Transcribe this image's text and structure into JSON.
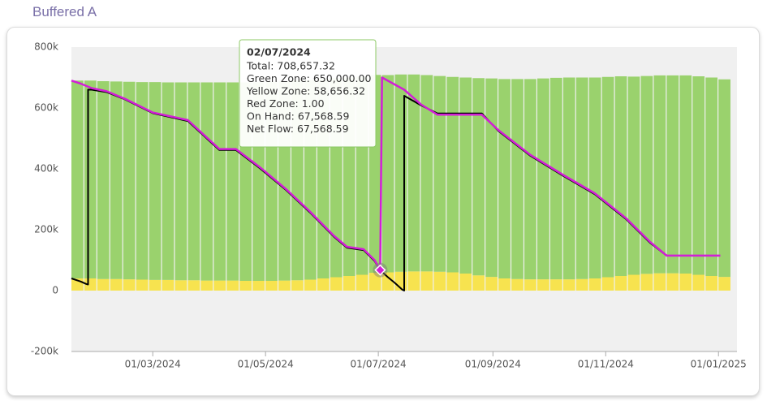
{
  "chart_data": {
    "type": "combo",
    "title": "Buffered A",
    "x": [
      "17/01/2024",
      "24/01/2024",
      "31/01/2024",
      "07/02/2024",
      "14/02/2024",
      "21/02/2024",
      "28/02/2024",
      "06/03/2024",
      "13/03/2024",
      "20/03/2024",
      "27/03/2024",
      "03/04/2024",
      "10/04/2024",
      "17/04/2024",
      "24/04/2024",
      "01/05/2024",
      "08/05/2024",
      "15/05/2024",
      "22/05/2024",
      "29/05/2024",
      "05/06/2024",
      "12/06/2024",
      "19/06/2024",
      "26/06/2024",
      "03/07/2024",
      "10/07/2024",
      "17/07/2024",
      "24/07/2024",
      "31/07/2024",
      "07/08/2024",
      "14/08/2024",
      "21/08/2024",
      "28/08/2024",
      "04/09/2024",
      "11/09/2024",
      "18/09/2024",
      "25/09/2024",
      "02/10/2024",
      "09/10/2024",
      "16/10/2024",
      "23/10/2024",
      "30/10/2024",
      "06/11/2024",
      "13/11/2024",
      "20/11/2024",
      "27/11/2024",
      "04/12/2024",
      "11/12/2024",
      "18/12/2024",
      "25/12/2024",
      "01/01/2025"
    ],
    "xlim": [
      "17/01/2024",
      "11/01/2025"
    ],
    "xticks": [
      "01/03/2024",
      "01/05/2024",
      "01/07/2024",
      "01/09/2024",
      "01/11/2024",
      "01/01/2025"
    ],
    "ylim": [
      -200000,
      800000
    ],
    "yticks": [
      {
        "value": -200000,
        "label": "-200k"
      },
      0,
      {
        "value": 200000,
        "label": "200k"
      },
      {
        "value": 400000,
        "label": "400k"
      },
      {
        "value": 600000,
        "label": "600k"
      },
      {
        "value": 800000,
        "label": "800k"
      }
    ],
    "series": [
      {
        "name": "Yellow Zone",
        "type": "bar",
        "color": "#f7e34f",
        "values": [
          40000,
          40000,
          38000,
          38000,
          37000,
          36000,
          35000,
          35000,
          34000,
          34000,
          33000,
          33000,
          33000,
          32000,
          32000,
          32000,
          33000,
          34000,
          36000,
          40000,
          44000,
          48000,
          52000,
          58656.32,
          60000,
          62000,
          63000,
          63000,
          62000,
          60000,
          56000,
          50000,
          45000,
          40000,
          38000,
          37000,
          37000,
          37000,
          37000,
          38000,
          40000,
          44000,
          48000,
          52000,
          55000,
          57000,
          57000,
          56000,
          52000,
          48000,
          45000
        ]
      },
      {
        "name": "Green Zone",
        "type": "bar",
        "color": "#9ad26d",
        "values": [
          650000,
          650000,
          650000,
          649000,
          649000,
          649000,
          650000,
          649000,
          650000,
          650000,
          651000,
          651000,
          651000,
          652000,
          653000,
          654000,
          655000,
          656000,
          656000,
          655000,
          654000,
          652000,
          651000,
          650000,
          648000,
          648000,
          647000,
          645000,
          643000,
          642000,
          644000,
          648000,
          652000,
          655000,
          657000,
          658000,
          660000,
          662000,
          663000,
          662000,
          660000,
          658000,
          656000,
          651000,
          650000,
          650000,
          650000,
          651000,
          652000,
          652000,
          649000
        ]
      },
      {
        "name": "On Hand",
        "type": "line",
        "color": "#000000",
        "x": [
          "17/01/2024",
          "22/01/2024",
          "25/01/2024",
          "26/01/2024",
          "26/01/2024",
          "28/01/2024",
          "05/02/2024",
          "15/02/2024",
          "01/03/2024",
          "20/03/2024",
          "06/04/2024",
          "15/04/2024",
          "28/04/2024",
          "12/05/2024",
          "25/05/2024",
          "07/06/2024",
          "14/06/2024",
          "23/06/2024",
          "29/06/2024",
          "02/07/2024",
          "06/07/2024",
          "10/07/2024",
          "14/07/2024",
          "15/07/2024",
          "15/07/2024",
          "24/07/2024",
          "02/08/2024",
          "26/08/2024",
          "04/09/2024",
          "21/09/2024",
          "09/10/2024",
          "26/10/2024",
          "12/11/2024",
          "25/11/2024",
          "04/12/2024"
        ],
        "values": [
          40000,
          30000,
          22000,
          20000,
          660000,
          660000,
          652000,
          628000,
          583000,
          557000,
          462000,
          462000,
          402000,
          331000,
          257000,
          177000,
          141000,
          133000,
          97000,
          67568.59,
          45000,
          25000,
          3000,
          0,
          640000,
          609000,
          582000,
          582000,
          524000,
          444000,
          377000,
          317000,
          235000,
          157000,
          115000
        ]
      },
      {
        "name": "Net Flow",
        "type": "line",
        "color": "#d21fd6",
        "x": [
          "17/01/2024",
          "22/01/2024",
          "28/01/2024",
          "05/02/2024",
          "15/02/2024",
          "01/03/2024",
          "20/03/2024",
          "06/04/2024",
          "15/04/2024",
          "28/04/2024",
          "12/05/2024",
          "25/05/2024",
          "07/06/2024",
          "14/06/2024",
          "23/06/2024",
          "29/06/2024",
          "02/07/2024",
          "03/07/2024",
          "15/07/2024",
          "24/07/2024",
          "02/08/2024",
          "26/08/2024",
          "04/09/2024",
          "21/09/2024",
          "09/10/2024",
          "26/10/2024",
          "12/11/2024",
          "25/11/2024",
          "04/12/2024",
          "02/01/2025"
        ],
        "values": [
          690000,
          680000,
          665000,
          655000,
          630000,
          585000,
          560000,
          465000,
          465000,
          405000,
          334000,
          260000,
          180000,
          144000,
          136000,
          100000,
          67568.59,
          700000,
          660000,
          612000,
          578000,
          578000,
          527000,
          447000,
          380000,
          320000,
          238000,
          160000,
          115000,
          115000
        ]
      }
    ],
    "tooltip": {
      "title": "02/07/2024",
      "rows": [
        "Total: 708,657.32",
        "Green Zone: 650,000.00",
        "Yellow Zone: 58,656.32",
        "Red Zone: 1.00",
        "On Hand: 67,568.59",
        "Net Flow: 67,568.59"
      ]
    }
  }
}
